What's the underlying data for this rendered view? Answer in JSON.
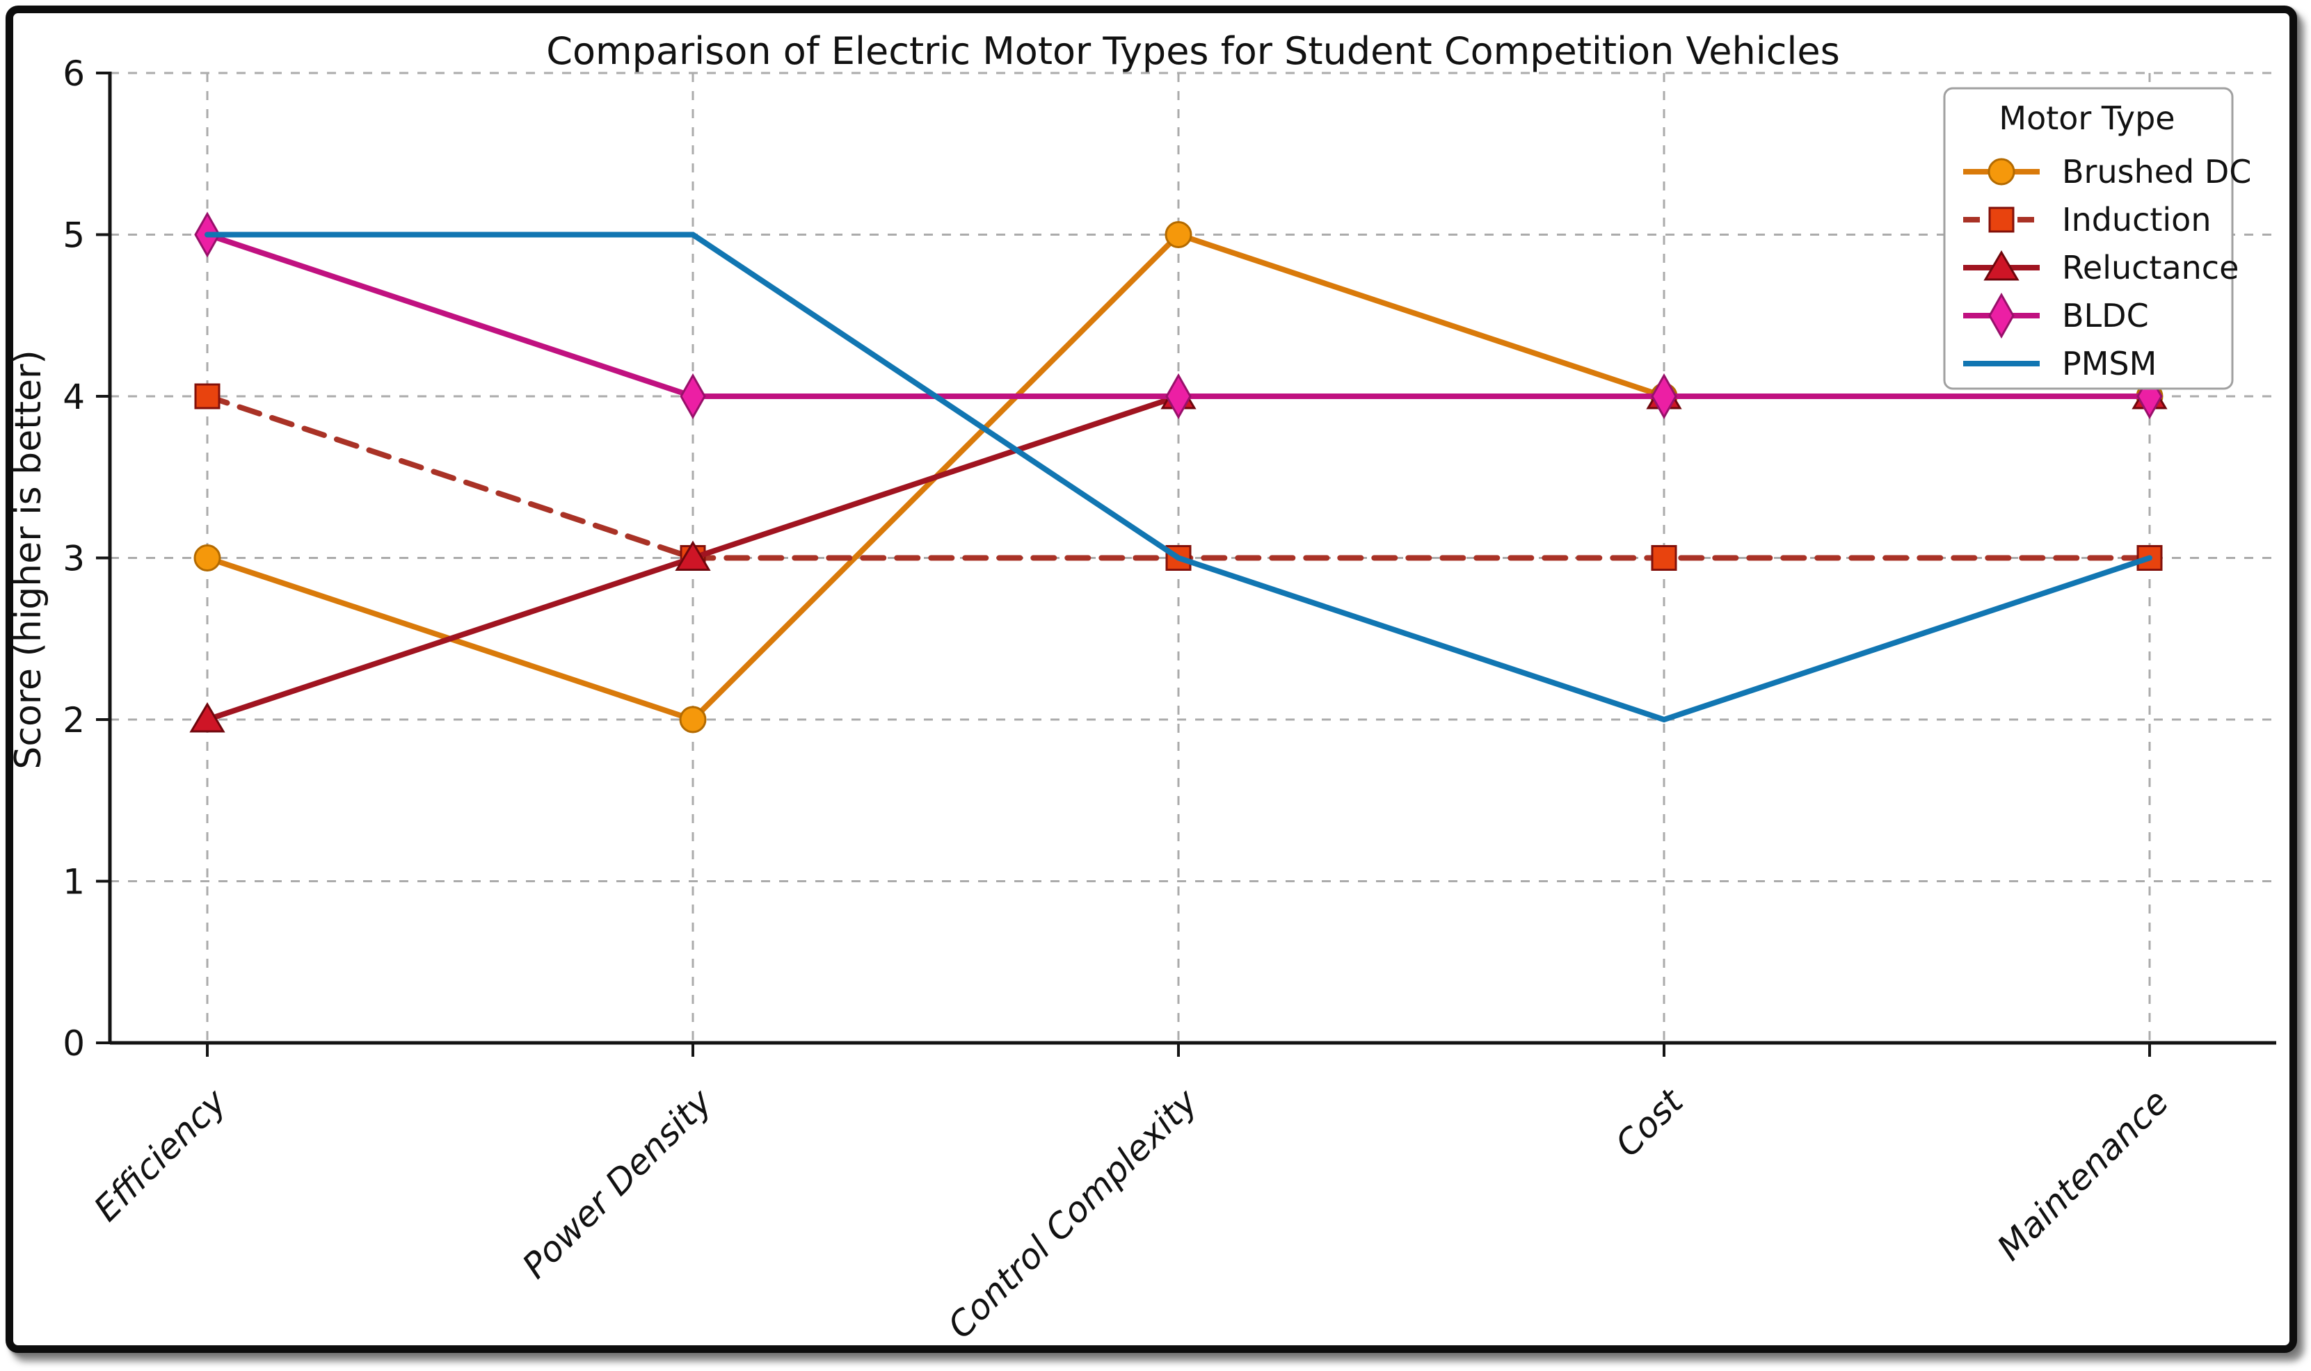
{
  "chart_data": {
    "type": "line",
    "title": "Comparison of Electric Motor Types for Student Competition Vehicles",
    "xlabel": "",
    "ylabel": "Score (higher is better)",
    "ylim": [
      0,
      6
    ],
    "yticks": [
      0,
      1,
      2,
      3,
      4,
      5,
      6
    ],
    "categories": [
      "Efficiency",
      "Power Density",
      "Control Complexity",
      "Cost",
      "Maintenance"
    ],
    "grid": "dashed gridlines on both axes",
    "legend": {
      "title": "Motor Type",
      "position": "upper-right"
    },
    "series": [
      {
        "name": "Brushed DC",
        "values": [
          3,
          2,
          5,
          4,
          4
        ],
        "color": "#D97A0A",
        "linestyle": "solid",
        "marker": "circle",
        "marker_fill": "#F5980B",
        "marker_edge": "#B36A00"
      },
      {
        "name": "Induction",
        "values": [
          4,
          3,
          3,
          3,
          3
        ],
        "color": "#A93226",
        "linestyle": "dashed",
        "marker": "square",
        "marker_fill": "#E8430E",
        "marker_edge": "#82100A"
      },
      {
        "name": "Reluctance",
        "values": [
          2,
          3,
          4,
          4,
          4
        ],
        "color": "#A01420",
        "linestyle": "solid",
        "marker": "triangle-up",
        "marker_fill": "#CE1526",
        "marker_edge": "#6E060C"
      },
      {
        "name": "BLDC",
        "values": [
          5,
          4,
          4,
          4,
          4
        ],
        "color": "#C01180",
        "linestyle": "solid",
        "marker": "thin-diamond",
        "marker_fill": "#EC1FA4",
        "marker_edge": "#98106A"
      },
      {
        "name": "PMSM",
        "values": [
          5,
          5,
          3,
          2,
          3
        ],
        "color": "#1176B2",
        "linestyle": "solid",
        "marker": "none",
        "marker_fill": "#1176B2",
        "marker_edge": "#1176B2"
      }
    ],
    "axis_colors": {
      "spine": "#141414",
      "grid": "#ABABAB",
      "legend_border": "#A0A0A0"
    }
  }
}
